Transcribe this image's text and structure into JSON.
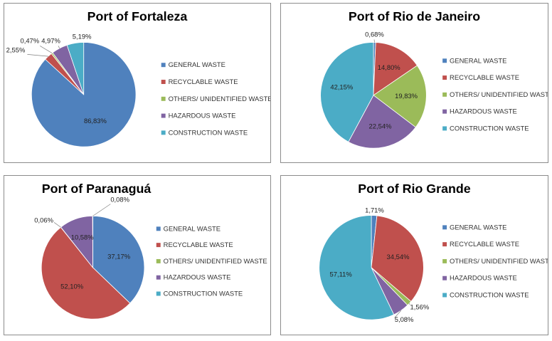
{
  "colors": {
    "general": "#4f81bd",
    "recyclable": "#c0504d",
    "others": "#9bbb59",
    "hazardous": "#8064a2",
    "construction": "#4bacc6"
  },
  "chart_data": [
    {
      "type": "pie",
      "title": "Port of Fortaleza",
      "categories": [
        "GENERAL WASTE",
        "RECYCLABLE WASTE",
        "OTHERS/ UNIDENTIFIED WASTE",
        "HAZARDOUS WASTE",
        "CONSTRUCTION WASTE"
      ],
      "values": [
        86.83,
        2.55,
        0.47,
        4.97,
        5.19
      ],
      "labels": [
        "86,83%",
        "2,55%",
        "0,47%",
        "4,97%",
        "5,19%"
      ],
      "legend": "right"
    },
    {
      "type": "pie",
      "title": "Port of Rio de Janeiro",
      "categories": [
        "GENERAL WASTE",
        "RECYCLABLE WASTE",
        "OTHERS/ UNIDENTIFIED WASTE",
        "HAZARDOUS WASTE",
        "CONSTRUCTION WASTE"
      ],
      "values": [
        0.68,
        14.8,
        19.83,
        22.54,
        42.15
      ],
      "labels": [
        "0,68%",
        "14,80%",
        "19,83%",
        "22,54%",
        "42,15%"
      ],
      "legend": "right"
    },
    {
      "type": "pie",
      "title": "Port of Paranaguá",
      "categories": [
        "GENERAL WASTE",
        "RECYCLABLE WASTE",
        "OTHERS/ UNIDENTIFIED WASTE",
        "HAZARDOUS WASTE",
        "CONSTRUCTION WASTE"
      ],
      "values": [
        37.17,
        52.1,
        0.06,
        10.58,
        0.08
      ],
      "labels": [
        "37,17%",
        "52,10%",
        "0,06%",
        "10,58%",
        "0,08%"
      ],
      "legend": "right"
    },
    {
      "type": "pie",
      "title": "Port of Rio Grande",
      "categories": [
        "GENERAL WASTE",
        "RECYCLABLE WASTE",
        "OTHERS/ UNIDENTIFIED WASTE",
        "HAZARDOUS WASTE",
        "CONSTRUCTION WASTE"
      ],
      "values": [
        1.71,
        34.54,
        1.56,
        5.08,
        57.11
      ],
      "labels": [
        "1,71%",
        "34,54%",
        "1,56%",
        "5,08%",
        "57,11%"
      ],
      "legend": "right"
    }
  ]
}
